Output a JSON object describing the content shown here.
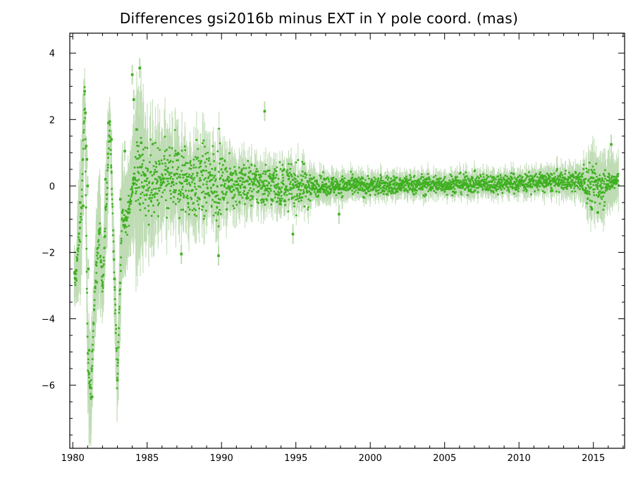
{
  "chart_data": {
    "type": "scatter",
    "title": "Differences gsi2016b minus EXT in Y pole coord. (mas)",
    "xlabel": "",
    "ylabel": "",
    "xlim": [
      1979.8,
      2017.1
    ],
    "ylim": [
      -7.9,
      4.6
    ],
    "x_ticks": [
      1980,
      1985,
      1990,
      1995,
      2000,
      2005,
      2010,
      2015
    ],
    "y_ticks": [
      4,
      2,
      0,
      -2,
      -4,
      -6
    ],
    "x_tick_labels": [
      "1980",
      "1985",
      "1990",
      "1995",
      "2000",
      "2005",
      "2010",
      "2015"
    ],
    "y_tick_labels": [
      "4",
      "2",
      "0",
      "−2",
      "−4",
      "−6"
    ],
    "grid": false,
    "legend": "none",
    "colors": {
      "points": "#3fb021",
      "error_bars": "#bfdcb5",
      "axes": "#000000"
    },
    "series": [
      {
        "marker": "dot-with-error-bars",
        "envelope": [
          {
            "x": 1980.2,
            "y": -2.8,
            "err": 0.8
          },
          {
            "x": 1980.6,
            "y": -0.6,
            "err": 2.2
          },
          {
            "x": 1980.8,
            "y": 2.8,
            "err": 0.8
          },
          {
            "x": 1981.0,
            "y": -5.0,
            "err": 1.9
          },
          {
            "x": 1981.2,
            "y": -6.4,
            "err": 1.4
          },
          {
            "x": 1981.5,
            "y": -3.0,
            "err": 1.2
          },
          {
            "x": 1981.8,
            "y": -1.4,
            "err": 2.0
          },
          {
            "x": 1982.0,
            "y": -3.0,
            "err": 1.0
          },
          {
            "x": 1982.3,
            "y": 0.0,
            "err": 1.5
          },
          {
            "x": 1982.5,
            "y": 1.9,
            "err": 0.7
          },
          {
            "x": 1982.8,
            "y": -2.8,
            "err": 1.2
          },
          {
            "x": 1983.0,
            "y": -5.9,
            "err": 1.3
          },
          {
            "x": 1983.3,
            "y": -0.9,
            "err": 1.8
          },
          {
            "x": 1983.6,
            "y": -1.2,
            "err": 1.3
          },
          {
            "x": 1984.0,
            "y": 0.0,
            "err": 1.4
          },
          {
            "x": 1984.3,
            "y": 0.4,
            "err": 2.6
          },
          {
            "x": 1985.0,
            "y": 0.1,
            "err": 1.4
          },
          {
            "x": 1986.0,
            "y": 0.1,
            "err": 1.2
          },
          {
            "x": 1987.0,
            "y": 0.2,
            "err": 1.1
          },
          {
            "x": 1988.0,
            "y": 0.1,
            "err": 0.9
          },
          {
            "x": 1990.0,
            "y": 0.1,
            "err": 0.8
          },
          {
            "x": 1992.0,
            "y": 0.05,
            "err": 0.6
          },
          {
            "x": 1995.0,
            "y": 0.0,
            "err": 0.45
          },
          {
            "x": 2000.0,
            "y": 0.0,
            "err": 0.3
          },
          {
            "x": 2005.0,
            "y": 0.05,
            "err": 0.3
          },
          {
            "x": 2010.0,
            "y": 0.1,
            "err": 0.3
          },
          {
            "x": 2014.0,
            "y": 0.15,
            "err": 0.4
          },
          {
            "x": 2015.0,
            "y": 0.0,
            "err": 0.8
          },
          {
            "x": 2016.6,
            "y": 0.15,
            "err": 0.7
          }
        ],
        "points": [
          [
            1980.2,
            -2.8
          ],
          [
            1980.5,
            -0.5
          ],
          [
            1980.7,
            -0.6
          ],
          [
            1980.8,
            2.85
          ],
          [
            1980.85,
            2.2
          ],
          [
            1980.9,
            1.2
          ],
          [
            1980.95,
            0.8
          ],
          [
            1981.0,
            0.0
          ],
          [
            1981.05,
            -2.5
          ],
          [
            1981.1,
            -4.95
          ],
          [
            1981.3,
            -6.35
          ],
          [
            1981.6,
            -2.9
          ],
          [
            1981.8,
            -1.4
          ],
          [
            1982.0,
            -3.0
          ],
          [
            1982.2,
            0.2
          ],
          [
            1982.4,
            1.9
          ],
          [
            1982.6,
            1.4
          ],
          [
            1982.8,
            -2.8
          ],
          [
            1983.0,
            -5.85
          ],
          [
            1983.2,
            -0.4
          ],
          [
            1983.5,
            1.05
          ],
          [
            1983.8,
            -0.8
          ],
          [
            1984.0,
            3.35
          ],
          [
            1984.1,
            2.6
          ],
          [
            1984.3,
            1.7
          ],
          [
            1984.5,
            3.55
          ],
          [
            1984.6,
            1.3
          ],
          [
            1987.3,
            -2.05
          ],
          [
            1989.8,
            -2.1
          ],
          [
            1992.9,
            2.25
          ],
          [
            1994.8,
            -1.45
          ],
          [
            1997.9,
            -0.85
          ],
          [
            2014.9,
            -0.7
          ],
          [
            2015.3,
            -0.8
          ],
          [
            2016.2,
            1.25
          ]
        ]
      }
    ]
  }
}
